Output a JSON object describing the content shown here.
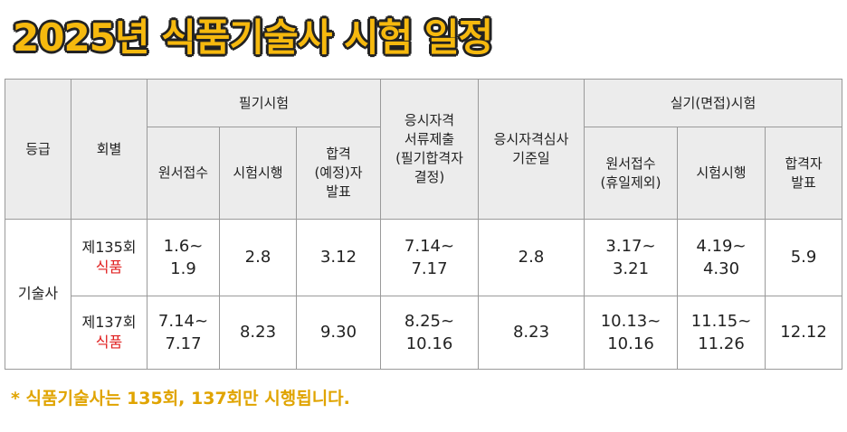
{
  "header": {
    "title": "2025년 식품기술사 시험 일정"
  },
  "table": {
    "header_top": [
      "등급",
      "회별",
      "필기시험",
      "응시자격\n서류제출\n(필기합격자\n결정)",
      "응시자격심사\n기준일",
      "실기(면접)시험"
    ],
    "header_sub": [
      "원서접수",
      "시험시행",
      "합격\n(예정)자\n발표",
      "원서접수\n(휴일제외)",
      "시험시행",
      "합격자\n발표"
    ],
    "grade": "기술사",
    "rows": [
      {
        "round": "제135회",
        "field": "식품",
        "cells": [
          "1.6~\n1.9",
          "2.8",
          "3.12",
          "7.14~\n7.17",
          "2.8",
          "3.17~\n3.21",
          "4.19~\n4.30",
          "5.9"
        ]
      },
      {
        "round": "제137회",
        "field": "식품",
        "cells": [
          "7.14~\n7.17",
          "8.23",
          "9.30",
          "8.25~\n10.16",
          "8.23",
          "10.13~\n10.16",
          "11.15~\n11.26",
          "12.12"
        ]
      }
    ]
  },
  "footnote": "* 식품기술사는 135회, 137회만 시행됩니다."
}
